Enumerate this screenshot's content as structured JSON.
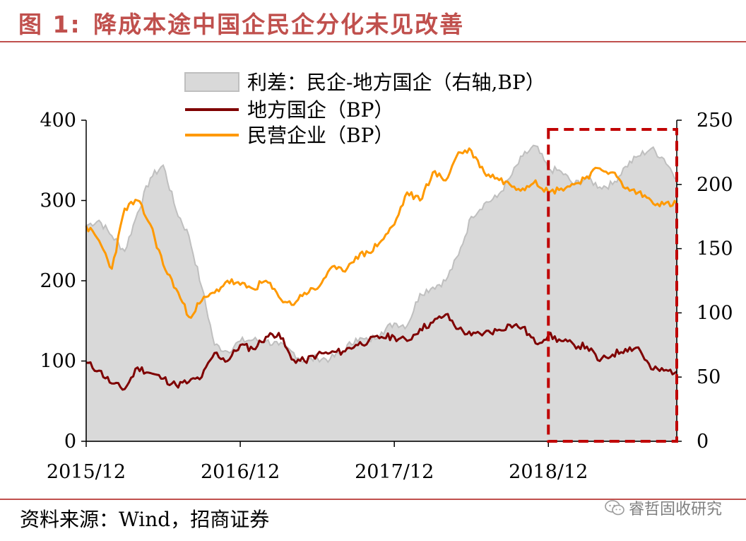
{
  "figure": {
    "title_prefix": "图",
    "title_number": "1:",
    "title_text": "降成本途中国企民企分化未见改善",
    "source": "资料来源：Wind，招商证券",
    "watermark": "睿哲固收研究",
    "watermark_icon": "wechat-icon"
  },
  "colors": {
    "accent": "#c0504d",
    "spread_fill": "#d9d9d9",
    "spread_edge": "#bfbfbf",
    "local_soe": "#7f0000",
    "private": "#ff9900",
    "highlight_box": "#c00000"
  },
  "chart_data": {
    "type": "area",
    "x_ticks": [
      "2015/12",
      "2016/12",
      "2017/12",
      "2018/12"
    ],
    "left_axis": {
      "ticks": [
        "0",
        "100",
        "200",
        "300",
        "400"
      ],
      "range": [
        0,
        400
      ],
      "unit": "BP"
    },
    "right_axis": {
      "ticks": [
        "0",
        "50",
        "100",
        "150",
        "200",
        "250"
      ],
      "range": [
        0,
        250
      ],
      "unit": "BP"
    },
    "legend": [
      "利差：民企-地方国企（右轴,BP）",
      "地方国企（BP）",
      "民营企业（BP）"
    ],
    "legend_placement": "top-center",
    "grid": false,
    "highlight_period": [
      "2018/12",
      "2019/10"
    ],
    "series": [
      {
        "name": "利差：民企-地方国企（右轴,BP）",
        "axis": "right",
        "kind": "area",
        "x": [
          "2015/12",
          "2016/01",
          "2016/02",
          "2016/03",
          "2016/04",
          "2016/05",
          "2016/06",
          "2016/07",
          "2016/08",
          "2016/09",
          "2016/10",
          "2016/11",
          "2016/12",
          "2017/01",
          "2017/02",
          "2017/03",
          "2017/04",
          "2017/05",
          "2017/06",
          "2017/07",
          "2017/08",
          "2017/09",
          "2017/10",
          "2017/11",
          "2017/12",
          "2018/01",
          "2018/02",
          "2018/03",
          "2018/04",
          "2018/05",
          "2018/06",
          "2018/07",
          "2018/08",
          "2018/09",
          "2018/10",
          "2018/11",
          "2018/12",
          "2019/01",
          "2019/02",
          "2019/03",
          "2019/04",
          "2019/05",
          "2019/06",
          "2019/07",
          "2019/08",
          "2019/09",
          "2019/10"
        ],
        "values": [
          168,
          172,
          160,
          148,
          178,
          205,
          215,
          180,
          160,
          120,
          75,
          70,
          78,
          79,
          78,
          75,
          70,
          62,
          65,
          64,
          70,
          80,
          78,
          85,
          92,
          90,
          115,
          120,
          125,
          145,
          175,
          185,
          190,
          205,
          222,
          230,
          212,
          210,
          200,
          205,
          198,
          200,
          214,
          222,
          228,
          220,
          205
        ]
      },
      {
        "name": "地方国企（BP）",
        "axis": "left",
        "x": [
          "2015/12",
          "2016/01",
          "2016/02",
          "2016/03",
          "2016/04",
          "2016/05",
          "2016/06",
          "2016/07",
          "2016/08",
          "2016/09",
          "2016/10",
          "2016/11",
          "2016/12",
          "2017/01",
          "2017/02",
          "2017/03",
          "2017/04",
          "2017/05",
          "2017/06",
          "2017/07",
          "2017/08",
          "2017/09",
          "2017/10",
          "2017/11",
          "2017/12",
          "2018/01",
          "2018/02",
          "2018/03",
          "2018/04",
          "2018/05",
          "2018/06",
          "2018/07",
          "2018/08",
          "2018/09",
          "2018/10",
          "2018/11",
          "2018/12",
          "2019/01",
          "2019/02",
          "2019/03",
          "2019/04",
          "2019/05",
          "2019/06",
          "2019/07",
          "2019/08",
          "2019/09",
          "2019/10"
        ],
        "values": [
          98,
          88,
          72,
          65,
          92,
          85,
          78,
          70,
          74,
          80,
          110,
          100,
          120,
          115,
          130,
          135,
          102,
          100,
          108,
          110,
          112,
          120,
          125,
          130,
          130,
          125,
          140,
          148,
          158,
          140,
          132,
          135,
          138,
          145,
          142,
          122,
          132,
          125,
          120,
          118,
          100,
          108,
          115,
          117,
          90,
          88,
          87
        ]
      },
      {
        "name": "民营企业（BP）",
        "axis": "left",
        "x": [
          "2015/12",
          "2016/01",
          "2016/02",
          "2016/03",
          "2016/04",
          "2016/05",
          "2016/06",
          "2016/07",
          "2016/08",
          "2016/09",
          "2016/10",
          "2016/11",
          "2016/12",
          "2017/01",
          "2017/02",
          "2017/03",
          "2017/04",
          "2017/05",
          "2017/06",
          "2017/07",
          "2017/08",
          "2017/09",
          "2017/10",
          "2017/11",
          "2017/12",
          "2018/01",
          "2018/02",
          "2018/03",
          "2018/04",
          "2018/05",
          "2018/06",
          "2018/07",
          "2018/08",
          "2018/09",
          "2018/10",
          "2018/11",
          "2018/12",
          "2019/01",
          "2019/02",
          "2019/03",
          "2019/04",
          "2019/05",
          "2019/06",
          "2019/07",
          "2019/08",
          "2019/09",
          "2019/10"
        ],
        "values": [
          268,
          250,
          215,
          290,
          300,
          270,
          220,
          190,
          155,
          175,
          185,
          200,
          195,
          190,
          200,
          180,
          170,
          185,
          190,
          215,
          212,
          230,
          235,
          250,
          270,
          310,
          300,
          335,
          325,
          360,
          362,
          335,
          328,
          320,
          315,
          325,
          310,
          315,
          320,
          330,
          340,
          335,
          315,
          310,
          300,
          295,
          296
        ]
      }
    ]
  }
}
